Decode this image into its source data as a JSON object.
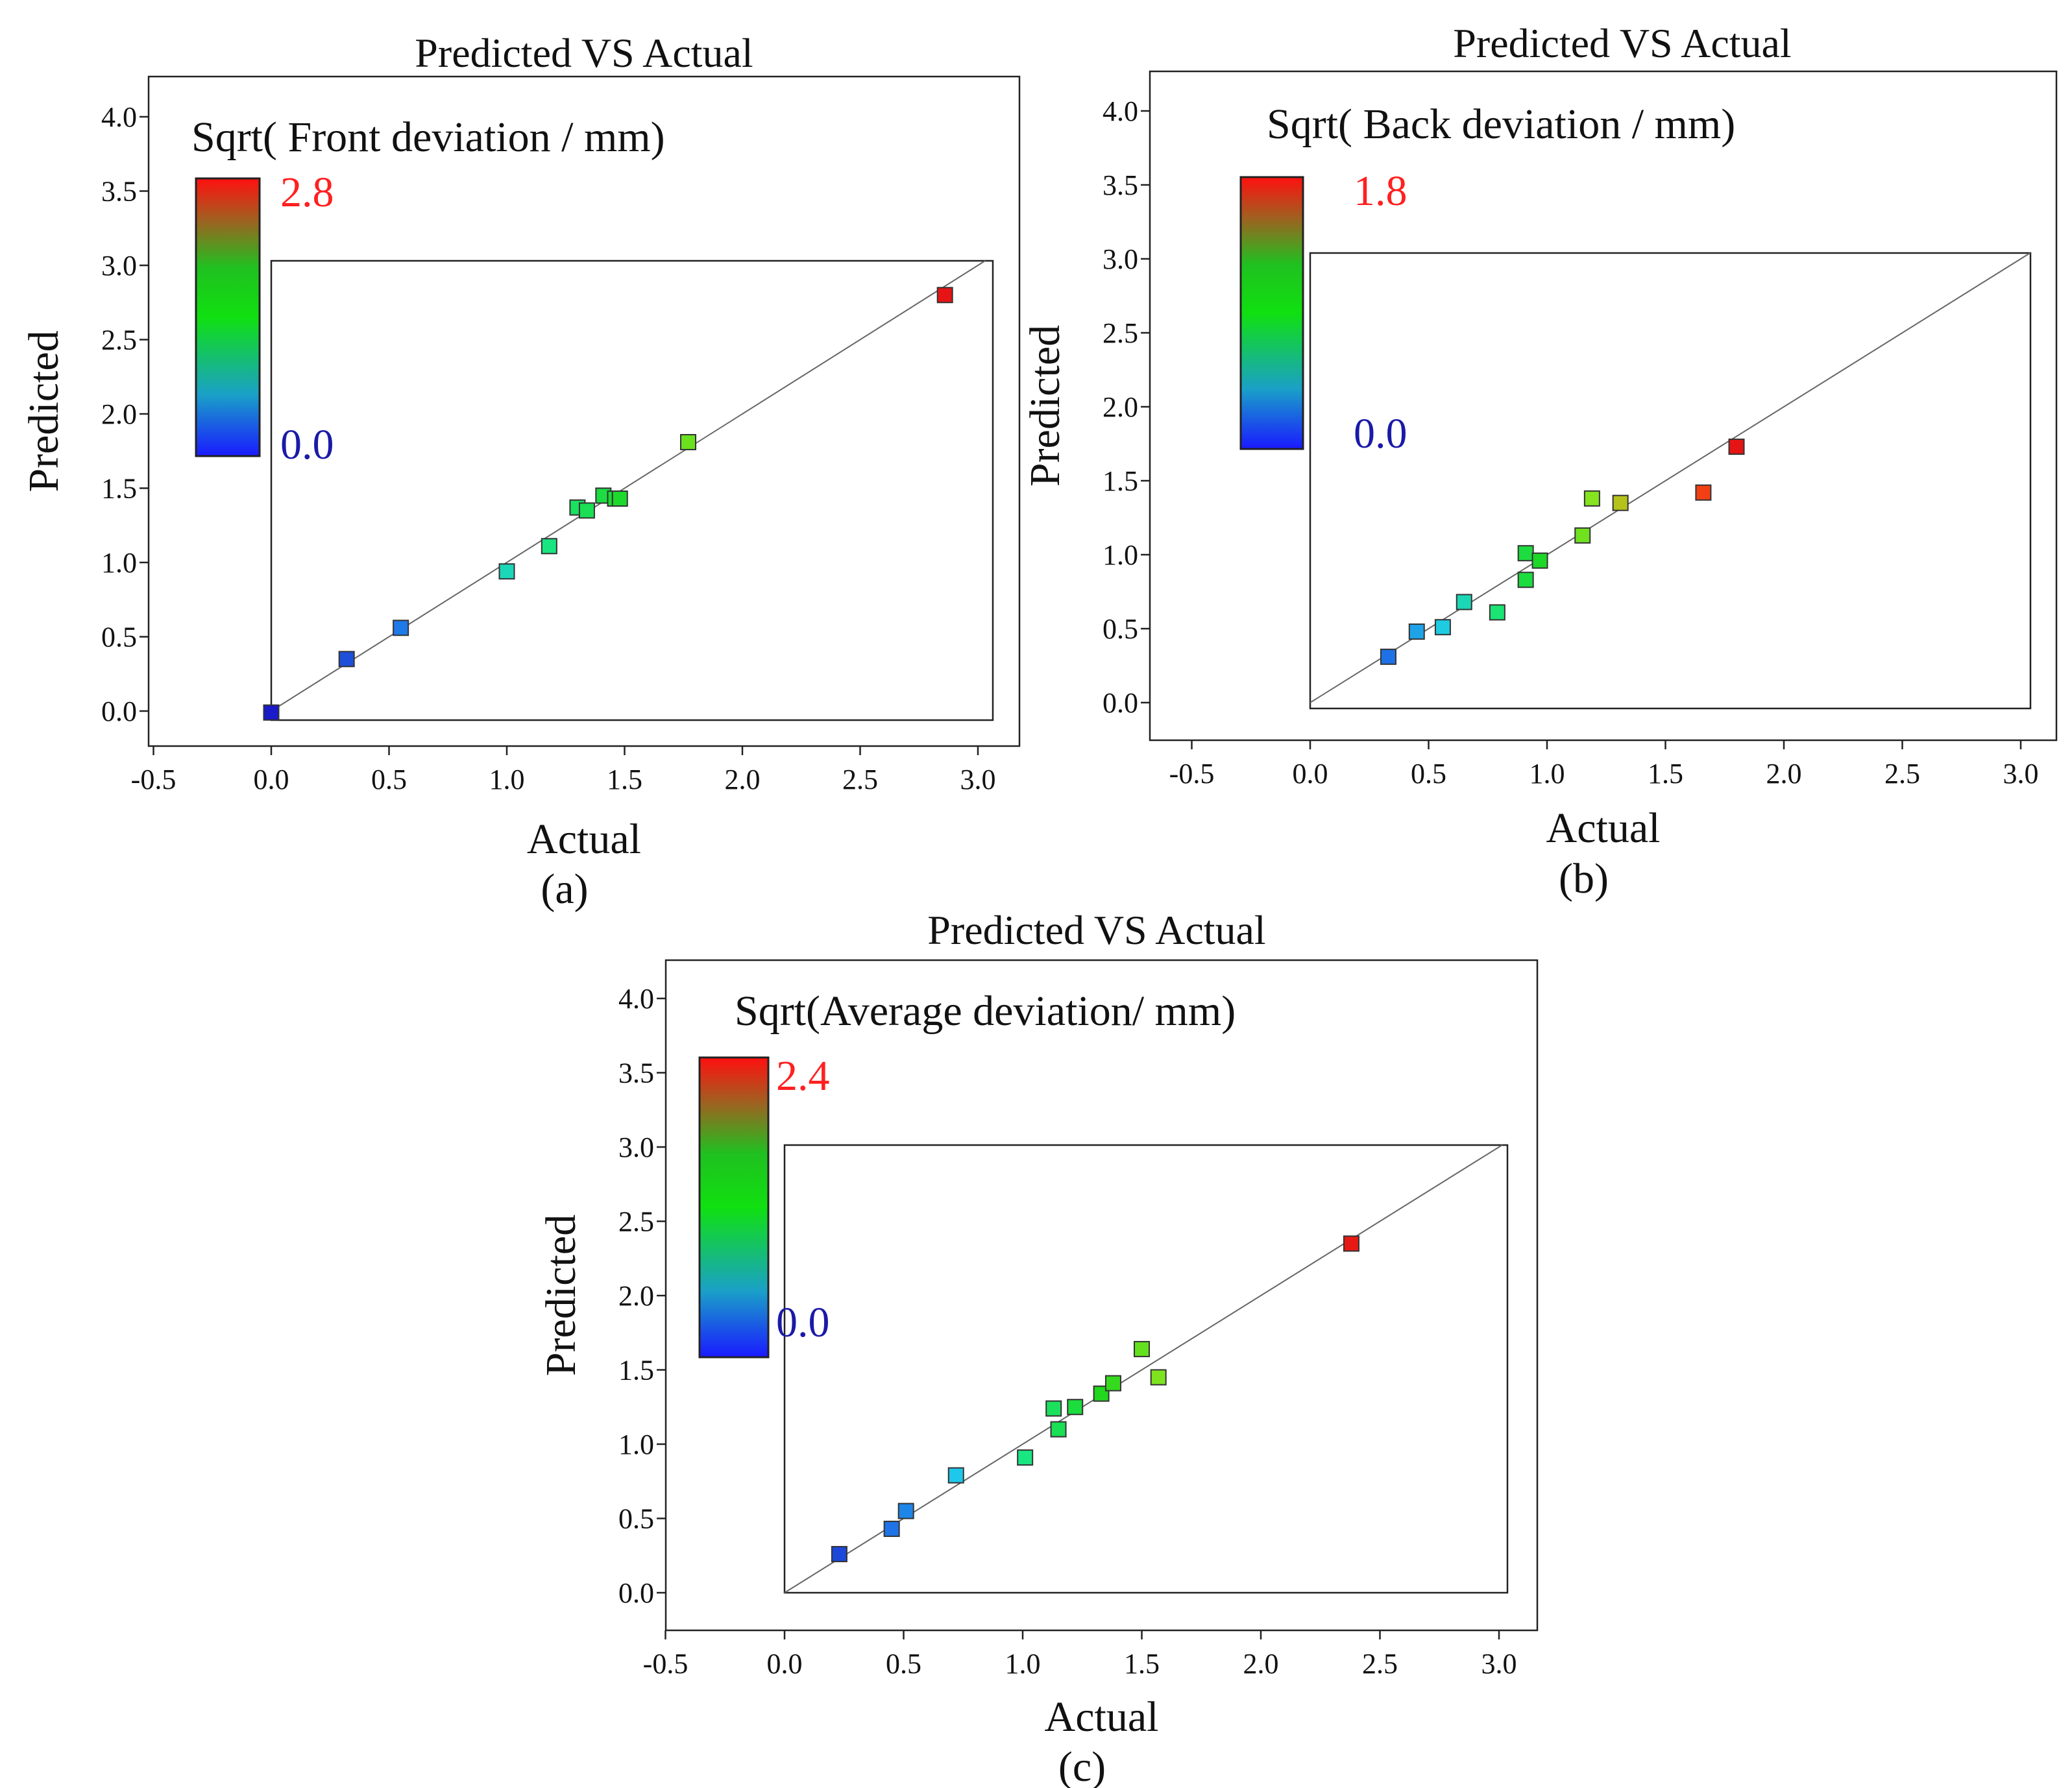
{
  "chart_data": [
    {
      "type": "scatter",
      "title": "Predicted VS Actual",
      "panel_label": "(a)",
      "xlabel": "Actual",
      "ylabel": "Predicted",
      "xlim": [
        -0.5,
        3.0
      ],
      "ylim": [
        0.0,
        4.0
      ],
      "xticks": [
        "-0.5",
        "0.0",
        "0.5",
        "1.0",
        "1.5",
        "2.0",
        "2.5",
        "3.0"
      ],
      "yticks": [
        "0.0",
        "0.5",
        "1.0",
        "1.5",
        "2.0",
        "2.5",
        "3.0",
        "3.5",
        "4.0"
      ],
      "grid": false,
      "reference_line": "y = x",
      "colorbar": {
        "label": "Sqrt( Front deviation / mm)",
        "max_label": "2.8",
        "min_label": "0.0",
        "max_color": "#ff2020",
        "min_color": "#1a1aa8",
        "min": 0.0,
        "max": 2.8
      },
      "points": [
        {
          "x": 0.0,
          "y": -0.01
        },
        {
          "x": 0.32,
          "y": 0.35
        },
        {
          "x": 0.55,
          "y": 0.56
        },
        {
          "x": 1.0,
          "y": 0.94
        },
        {
          "x": 1.18,
          "y": 1.11
        },
        {
          "x": 1.3,
          "y": 1.37
        },
        {
          "x": 1.34,
          "y": 1.35
        },
        {
          "x": 1.41,
          "y": 1.45
        },
        {
          "x": 1.46,
          "y": 1.43
        },
        {
          "x": 1.48,
          "y": 1.43
        },
        {
          "x": 1.77,
          "y": 1.81
        },
        {
          "x": 2.86,
          "y": 2.8
        }
      ]
    },
    {
      "type": "scatter",
      "title": "Predicted VS Actual",
      "panel_label": "(b)",
      "xlabel": "Actual",
      "ylabel": "Predicted",
      "xlim": [
        -0.5,
        3.0
      ],
      "ylim": [
        0.0,
        4.0
      ],
      "xticks": [
        "-0.5",
        "0.0",
        "0.5",
        "1.0",
        "1.5",
        "2.0",
        "2.5",
        "3.0"
      ],
      "yticks": [
        "0.0",
        "0.5",
        "1.0",
        "1.5",
        "2.0",
        "2.5",
        "3.0",
        "3.5",
        "4.0"
      ],
      "grid": false,
      "reference_line": "y = x",
      "colorbar": {
        "label": "Sqrt( Back deviation / mm)",
        "max_label": "1.8",
        "min_label": "0.0",
        "max_color": "#ff2020",
        "min_color": "#1a1aa8",
        "min": 0.0,
        "max": 1.8
      },
      "points": [
        {
          "x": 0.33,
          "y": 0.31
        },
        {
          "x": 0.45,
          "y": 0.48
        },
        {
          "x": 0.56,
          "y": 0.51
        },
        {
          "x": 0.65,
          "y": 0.68
        },
        {
          "x": 0.79,
          "y": 0.61
        },
        {
          "x": 0.91,
          "y": 0.83
        },
        {
          "x": 0.91,
          "y": 1.01
        },
        {
          "x": 0.97,
          "y": 0.96
        },
        {
          "x": 1.15,
          "y": 1.13
        },
        {
          "x": 1.19,
          "y": 1.38
        },
        {
          "x": 1.31,
          "y": 1.35
        },
        {
          "x": 1.66,
          "y": 1.42
        },
        {
          "x": 1.8,
          "y": 1.73
        }
      ]
    },
    {
      "type": "scatter",
      "title": "Predicted VS Actual",
      "panel_label": "(c)",
      "xlabel": "Actual",
      "ylabel": "Predicted",
      "xlim": [
        -0.5,
        3.0
      ],
      "ylim": [
        0.0,
        4.0
      ],
      "xticks": [
        "-0.5",
        "0.0",
        "0.5",
        "1.0",
        "1.5",
        "2.0",
        "2.5",
        "3.0"
      ],
      "yticks": [
        "0.0",
        "0.5",
        "1.0",
        "1.5",
        "2.0",
        "2.5",
        "3.0",
        "3.5",
        "4.0"
      ],
      "grid": false,
      "reference_line": "y = x",
      "colorbar": {
        "label": "Sqrt(Average deviation/ mm)",
        "max_label": "2.4",
        "min_label": "0.0",
        "max_color": "#ff2020",
        "min_color": "#1a1aa8",
        "min": 0.0,
        "max": 2.4
      },
      "points": [
        {
          "x": 0.23,
          "y": 0.26
        },
        {
          "x": 0.45,
          "y": 0.43
        },
        {
          "x": 0.51,
          "y": 0.55
        },
        {
          "x": 0.72,
          "y": 0.79
        },
        {
          "x": 1.01,
          "y": 0.91
        },
        {
          "x": 1.13,
          "y": 1.24
        },
        {
          "x": 1.15,
          "y": 1.1
        },
        {
          "x": 1.22,
          "y": 1.25
        },
        {
          "x": 1.33,
          "y": 1.34
        },
        {
          "x": 1.38,
          "y": 1.41
        },
        {
          "x": 1.5,
          "y": 1.64
        },
        {
          "x": 1.57,
          "y": 1.45
        },
        {
          "x": 2.38,
          "y": 2.35
        }
      ]
    }
  ]
}
